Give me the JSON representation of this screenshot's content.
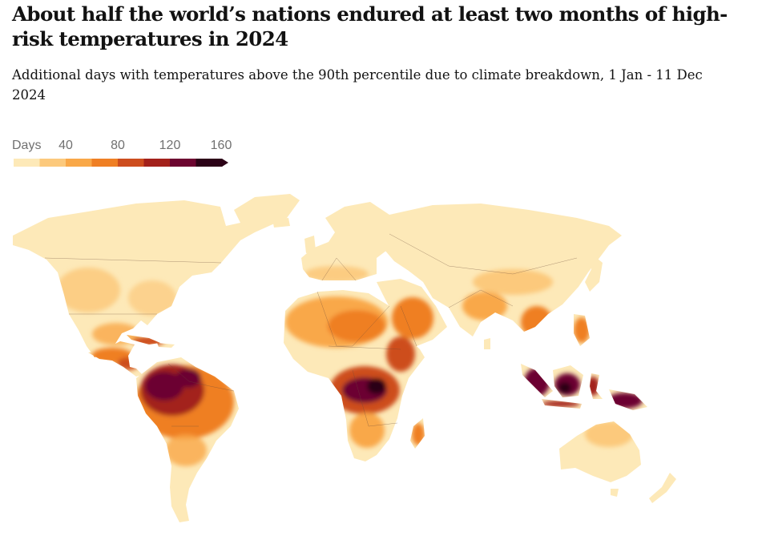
{
  "headline": "About half the world’s nations endured at least two months of high-risk temperatures in 2024",
  "standfirst": "Additional days with temperatures above the 90th percentile due to climate breakdown, 1 Jan - 11 Dec 2024",
  "legend": {
    "title": "Days",
    "ticks": [
      "40",
      "80",
      "120",
      "160"
    ],
    "tick_values": [
      40,
      80,
      120,
      160
    ],
    "min": 0,
    "max": 160,
    "step": 20,
    "colors": [
      "#fde9b8",
      "#fcc97c",
      "#f9a848",
      "#ef7f24",
      "#cd4d1e",
      "#a3211b",
      "#6c0530",
      "#2c0217"
    ],
    "overflow_arrow": true
  },
  "map": {
    "projection": "world",
    "color_scale": "days above 90th percentile",
    "regions_most_affected": [
      "Amazon basin",
      "Central Africa",
      "Indonesia",
      "Central America",
      "Caribbean"
    ]
  }
}
